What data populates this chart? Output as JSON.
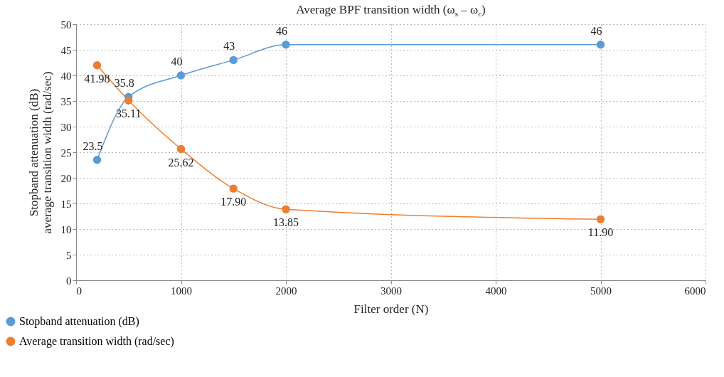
{
  "chart_data": {
    "type": "line",
    "title": "Average BPF transition width (ω$_{s}$ – ω$_{c}$)",
    "xlabel": "Filter order (N)",
    "ylabel": "Stopband attenuation (dB)\naverage transition width (rad/sec)",
    "x": [
      200,
      500,
      1000,
      1500,
      2000,
      5000
    ],
    "series": [
      {
        "name": "Stopband attenuation (dB)",
        "color": "#5b9bd5",
        "values": [
          23.5,
          35.8,
          40,
          43,
          46,
          46
        ],
        "value_labels": [
          "23.5",
          "35.8",
          "40",
          "43",
          "46",
          "46"
        ]
      },
      {
        "name": "Average transition width (rad/sec)",
        "color": "#ed7d31",
        "values": [
          41.98,
          35.11,
          25.62,
          17.9,
          13.85,
          11.9
        ],
        "value_labels": [
          "41.98",
          "35.11",
          "25.62",
          "17.90",
          "13.85",
          "11.90"
        ]
      }
    ],
    "xlim": [
      0,
      6000
    ],
    "xticks": [
      0,
      1000,
      2000,
      3000,
      4000,
      5000,
      6000
    ],
    "ylim": [
      0,
      50
    ],
    "yticks": [
      0,
      5,
      10,
      15,
      20,
      25,
      30,
      35,
      40,
      45,
      50
    ],
    "grid": true,
    "legend": "bottom left",
    "marker": "circle",
    "line_style": "solid"
  }
}
